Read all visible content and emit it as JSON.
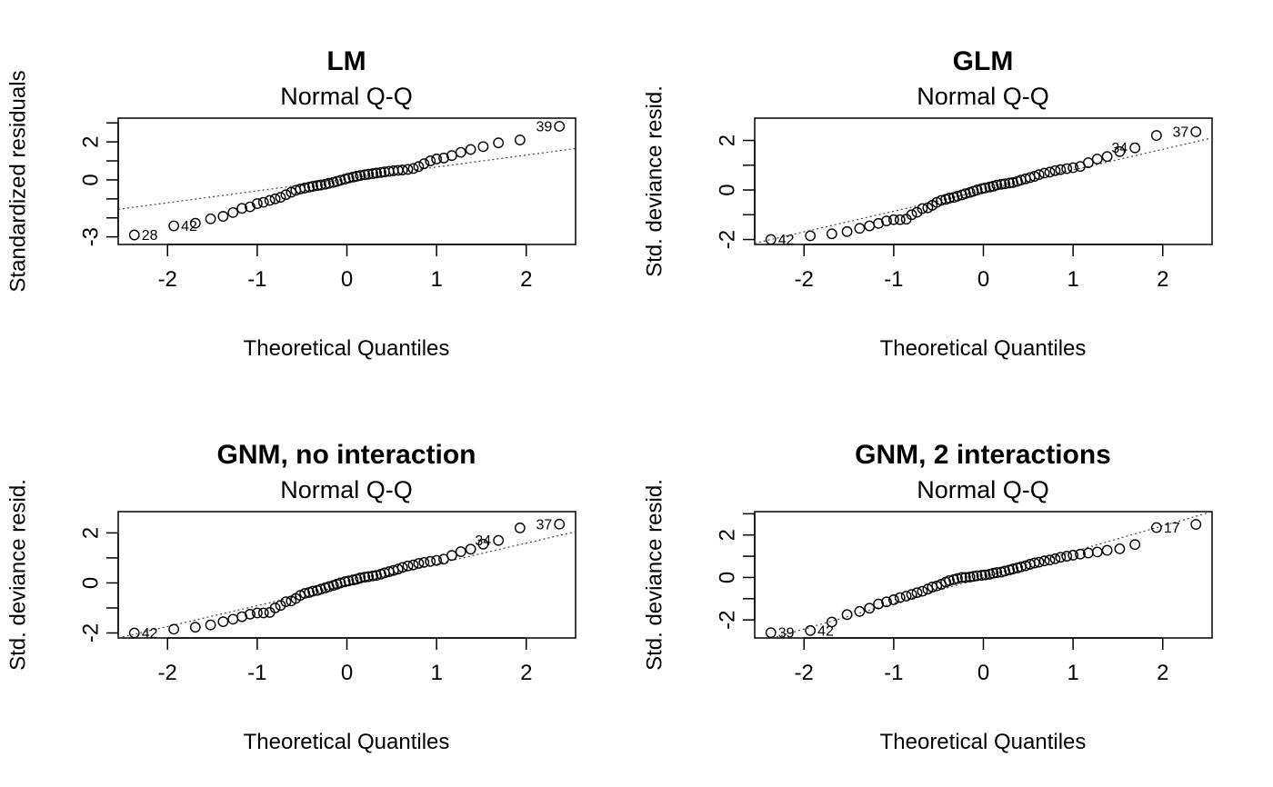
{
  "chart_data": [
    {
      "type": "scatter",
      "title": "LM",
      "subtitle": "Normal Q-Q",
      "xlabel": "Theoretical Quantiles",
      "ylabel": "Standardized residuals",
      "xlim": [
        -2.55,
        2.55
      ],
      "ylim": [
        -3.4,
        3.25
      ],
      "xticks": [
        -2,
        -1,
        0,
        1,
        2
      ],
      "yticks": [
        -3,
        -2,
        -1,
        0,
        1,
        2,
        3
      ],
      "yticklabels": [
        "-3",
        "",
        "",
        "0",
        "",
        "2",
        ""
      ],
      "grid": false,
      "legend": "none",
      "qqline": {
        "x": [
          -2.55,
          2.55
        ],
        "y": [
          -1.55,
          1.65
        ]
      },
      "x": [
        -2.37,
        -1.93,
        -1.69,
        -1.52,
        -1.38,
        -1.27,
        -1.17,
        -1.08,
        -1.0,
        -0.93,
        -0.86,
        -0.8,
        -0.74,
        -0.68,
        -0.62,
        -0.57,
        -0.52,
        -0.47,
        -0.42,
        -0.38,
        -0.33,
        -0.29,
        -0.24,
        -0.2,
        -0.15,
        -0.11,
        -0.07,
        -0.02,
        0.02,
        0.07,
        0.11,
        0.15,
        0.2,
        0.24,
        0.29,
        0.33,
        0.38,
        0.42,
        0.47,
        0.52,
        0.57,
        0.62,
        0.68,
        0.74,
        0.8,
        0.86,
        0.93,
        1.0,
        1.08,
        1.17,
        1.27,
        1.38,
        1.52,
        1.69,
        1.93,
        2.37
      ],
      "y": [
        -2.9,
        -2.42,
        -2.28,
        -2.05,
        -1.92,
        -1.72,
        -1.5,
        -1.42,
        -1.25,
        -1.18,
        -1.08,
        -1.0,
        -0.92,
        -0.78,
        -0.65,
        -0.55,
        -0.48,
        -0.43,
        -0.38,
        -0.34,
        -0.3,
        -0.27,
        -0.23,
        -0.18,
        -0.13,
        -0.08,
        -0.02,
        0.04,
        0.1,
        0.15,
        0.19,
        0.23,
        0.27,
        0.3,
        0.33,
        0.36,
        0.39,
        0.42,
        0.45,
        0.48,
        0.5,
        0.52,
        0.55,
        0.6,
        0.7,
        0.85,
        1.0,
        1.1,
        1.15,
        1.28,
        1.45,
        1.6,
        1.75,
        1.95,
        2.1,
        2.82
      ],
      "point_labels": [
        {
          "text": "28",
          "x": -2.37,
          "y": -2.9,
          "side": "right"
        },
        {
          "text": "42",
          "x": -1.93,
          "y": -2.42,
          "side": "right"
        },
        {
          "text": "39",
          "x": 2.37,
          "y": 2.82,
          "side": "left"
        }
      ]
    },
    {
      "type": "scatter",
      "title": "GLM",
      "subtitle": "Normal Q-Q",
      "xlabel": "Theoretical Quantiles",
      "ylabel": "Std. deviance resid.",
      "xlim": [
        -2.55,
        2.55
      ],
      "ylim": [
        -2.2,
        2.9
      ],
      "xticks": [
        -2,
        -1,
        0,
        1,
        2
      ],
      "yticks": [
        -2,
        -1,
        0,
        1,
        2
      ],
      "yticklabels": [
        "-2",
        "",
        "0",
        "",
        "2"
      ],
      "grid": false,
      "legend": "none",
      "qqline": {
        "x": [
          -2.55,
          2.55
        ],
        "y": [
          -2.15,
          2.1
        ]
      },
      "x": [
        -2.37,
        -1.93,
        -1.69,
        -1.52,
        -1.38,
        -1.27,
        -1.17,
        -1.08,
        -1.0,
        -0.93,
        -0.86,
        -0.8,
        -0.74,
        -0.68,
        -0.62,
        -0.57,
        -0.52,
        -0.47,
        -0.42,
        -0.38,
        -0.33,
        -0.29,
        -0.24,
        -0.2,
        -0.15,
        -0.11,
        -0.07,
        -0.02,
        0.02,
        0.07,
        0.11,
        0.15,
        0.2,
        0.24,
        0.29,
        0.33,
        0.38,
        0.42,
        0.47,
        0.52,
        0.57,
        0.62,
        0.68,
        0.74,
        0.8,
        0.86,
        0.93,
        1.0,
        1.08,
        1.17,
        1.27,
        1.38,
        1.52,
        1.69,
        1.93,
        2.37
      ],
      "y": [
        -2.0,
        -1.85,
        -1.77,
        -1.68,
        -1.55,
        -1.45,
        -1.35,
        -1.25,
        -1.2,
        -1.2,
        -1.18,
        -1.0,
        -0.9,
        -0.75,
        -0.72,
        -0.62,
        -0.5,
        -0.42,
        -0.38,
        -0.33,
        -0.3,
        -0.25,
        -0.2,
        -0.15,
        -0.1,
        -0.05,
        0.0,
        0.05,
        0.08,
        0.12,
        0.15,
        0.2,
        0.23,
        0.25,
        0.28,
        0.3,
        0.35,
        0.4,
        0.45,
        0.5,
        0.55,
        0.62,
        0.68,
        0.72,
        0.78,
        0.82,
        0.86,
        0.9,
        0.95,
        1.1,
        1.25,
        1.35,
        1.55,
        1.7,
        2.2,
        2.35
      ],
      "point_labels": [
        {
          "text": "42",
          "x": -2.37,
          "y": -2.0,
          "side": "right"
        },
        {
          "text": "34",
          "x": 1.69,
          "y": 1.7,
          "side": "left"
        },
        {
          "text": "37",
          "x": 2.37,
          "y": 2.35,
          "side": "left"
        }
      ]
    },
    {
      "type": "scatter",
      "title": "GNM, no interaction",
      "subtitle": "Normal Q-Q",
      "xlabel": "Theoretical Quantiles",
      "ylabel": "Std. deviance resid.",
      "xlim": [
        -2.55,
        2.55
      ],
      "ylim": [
        -2.2,
        2.85
      ],
      "xticks": [
        -2,
        -1,
        0,
        1,
        2
      ],
      "yticks": [
        -2,
        -1,
        0,
        1,
        2
      ],
      "yticklabels": [
        "-2",
        "",
        "0",
        "",
        "2"
      ],
      "grid": false,
      "legend": "none",
      "qqline": {
        "x": [
          -2.55,
          2.55
        ],
        "y": [
          -2.2,
          2.05
        ]
      },
      "x": [
        -2.37,
        -1.93,
        -1.69,
        -1.52,
        -1.38,
        -1.27,
        -1.17,
        -1.08,
        -1.0,
        -0.93,
        -0.86,
        -0.8,
        -0.74,
        -0.68,
        -0.62,
        -0.57,
        -0.52,
        -0.47,
        -0.42,
        -0.38,
        -0.33,
        -0.29,
        -0.24,
        -0.2,
        -0.15,
        -0.11,
        -0.07,
        -0.02,
        0.02,
        0.07,
        0.11,
        0.15,
        0.2,
        0.24,
        0.29,
        0.33,
        0.38,
        0.42,
        0.47,
        0.52,
        0.57,
        0.62,
        0.68,
        0.74,
        0.8,
        0.86,
        0.93,
        1.0,
        1.08,
        1.17,
        1.27,
        1.38,
        1.52,
        1.69,
        1.93,
        2.37
      ],
      "y": [
        -2.0,
        -1.85,
        -1.77,
        -1.68,
        -1.55,
        -1.45,
        -1.35,
        -1.25,
        -1.2,
        -1.2,
        -1.18,
        -1.0,
        -0.9,
        -0.75,
        -0.72,
        -0.62,
        -0.5,
        -0.42,
        -0.38,
        -0.33,
        -0.3,
        -0.25,
        -0.2,
        -0.15,
        -0.1,
        -0.05,
        0.0,
        0.05,
        0.08,
        0.12,
        0.15,
        0.2,
        0.23,
        0.25,
        0.28,
        0.3,
        0.35,
        0.4,
        0.45,
        0.5,
        0.55,
        0.62,
        0.68,
        0.72,
        0.78,
        0.82,
        0.86,
        0.9,
        0.95,
        1.1,
        1.25,
        1.35,
        1.55,
        1.7,
        2.2,
        2.35
      ],
      "point_labels": [
        {
          "text": "42",
          "x": -2.37,
          "y": -2.0,
          "side": "right"
        },
        {
          "text": "34",
          "x": 1.69,
          "y": 1.7,
          "side": "left"
        },
        {
          "text": "37",
          "x": 2.37,
          "y": 2.35,
          "side": "left"
        }
      ]
    },
    {
      "type": "scatter",
      "title": "GNM, 2 interactions",
      "subtitle": "Normal Q-Q",
      "xlabel": "Theoretical Quantiles",
      "ylabel": "Std. deviance resid.",
      "xlim": [
        -2.55,
        2.55
      ],
      "ylim": [
        -2.85,
        3.1
      ],
      "xticks": [
        -2,
        -1,
        0,
        1,
        2
      ],
      "yticks": [
        -2,
        -1,
        0,
        1,
        2,
        3
      ],
      "yticklabels": [
        "-2",
        "",
        "0",
        "",
        "2",
        ""
      ],
      "grid": false,
      "legend": "none",
      "qqline": {
        "x": [
          -2.55,
          2.55
        ],
        "y": [
          -3.1,
          3.1
        ]
      },
      "x": [
        -2.37,
        -1.93,
        -1.69,
        -1.52,
        -1.38,
        -1.27,
        -1.17,
        -1.08,
        -1.0,
        -0.93,
        -0.86,
        -0.8,
        -0.74,
        -0.68,
        -0.62,
        -0.57,
        -0.52,
        -0.47,
        -0.42,
        -0.38,
        -0.33,
        -0.29,
        -0.24,
        -0.2,
        -0.15,
        -0.11,
        -0.07,
        -0.02,
        0.02,
        0.07,
        0.11,
        0.15,
        0.2,
        0.24,
        0.29,
        0.33,
        0.38,
        0.42,
        0.47,
        0.52,
        0.57,
        0.62,
        0.68,
        0.74,
        0.8,
        0.86,
        0.93,
        1.0,
        1.08,
        1.17,
        1.27,
        1.38,
        1.52,
        1.69,
        1.93,
        2.37
      ],
      "y": [
        -2.6,
        -2.5,
        -2.1,
        -1.75,
        -1.6,
        -1.45,
        -1.25,
        -1.15,
        -1.05,
        -0.95,
        -0.88,
        -0.8,
        -0.72,
        -0.65,
        -0.55,
        -0.45,
        -0.4,
        -0.32,
        -0.22,
        -0.15,
        -0.1,
        -0.05,
        0.0,
        0.0,
        0.02,
        0.05,
        0.08,
        0.1,
        0.12,
        0.15,
        0.2,
        0.23,
        0.25,
        0.3,
        0.35,
        0.4,
        0.45,
        0.5,
        0.55,
        0.62,
        0.68,
        0.72,
        0.78,
        0.82,
        0.88,
        0.95,
        1.0,
        1.05,
        1.1,
        1.15,
        1.2,
        1.28,
        1.35,
        1.55,
        2.35,
        2.5
      ],
      "point_labels": [
        {
          "text": "39",
          "x": -2.37,
          "y": -2.6,
          "side": "right"
        },
        {
          "text": "42",
          "x": -1.93,
          "y": -2.5,
          "side": "right"
        },
        {
          "text": "17",
          "x": 1.93,
          "y": 2.35,
          "side": "right"
        }
      ]
    }
  ]
}
